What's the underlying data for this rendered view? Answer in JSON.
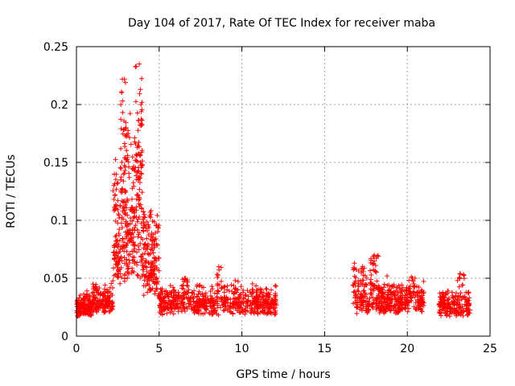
{
  "chart_data": {
    "type": "scatter",
    "title": "Day 104 of 2017, Rate Of TEC Index for receiver maba",
    "xlabel": "GPS time / hours",
    "ylabel": "ROTI / TECUs",
    "xlim": [
      0,
      25
    ],
    "ylim": [
      0,
      0.25
    ],
    "xticks": [
      0,
      5,
      10,
      15,
      20,
      25
    ],
    "yticks": [
      0,
      0.05,
      0.1,
      0.15,
      0.2,
      0.25
    ],
    "xtick_labels": [
      "0",
      "5",
      "10",
      "15",
      "20",
      "25"
    ],
    "ytick_labels": [
      "0",
      "0.05",
      "0.1",
      "0.15",
      "0.2",
      "0.25"
    ],
    "grid": true,
    "marker": "+",
    "color": "#ff0000",
    "series": [
      {
        "name": "ROTI",
        "segments": [
          {
            "t_start": 0.0,
            "t_end": 1.0,
            "base": 0.018,
            "spread": 0.012,
            "n": 160,
            "peaks": [
              [
                0.8,
                0.03
              ]
            ]
          },
          {
            "t_start": 1.0,
            "t_end": 2.2,
            "base": 0.022,
            "spread": 0.014,
            "n": 150,
            "peaks": [
              [
                1.0,
                0.045
              ]
            ]
          },
          {
            "t_start": 2.2,
            "t_end": 3.0,
            "base": 0.06,
            "spread": 0.08,
            "n": 170,
            "peaks": [
              [
                2.9,
                0.222
              ],
              [
                3.0,
                0.18
              ]
            ]
          },
          {
            "t_start": 3.0,
            "t_end": 4.0,
            "base": 0.07,
            "spread": 0.11,
            "n": 220,
            "peaks": [
              [
                3.8,
                0.235
              ],
              [
                3.9,
                0.2
              ],
              [
                3.5,
                0.11
              ]
            ]
          },
          {
            "t_start": 4.0,
            "t_end": 5.0,
            "base": 0.045,
            "spread": 0.06,
            "n": 170,
            "peaks": [
              [
                4.1,
                0.105
              ]
            ]
          },
          {
            "t_start": 5.0,
            "t_end": 12.1,
            "base": 0.02,
            "spread": 0.016,
            "n": 650,
            "peaks": [
              [
                6.6,
                0.05
              ],
              [
                8.6,
                0.06
              ],
              [
                9.6,
                0.048
              ]
            ]
          },
          {
            "t_start": 16.7,
            "t_end": 21.0,
            "base": 0.022,
            "spread": 0.02,
            "n": 480,
            "peaks": [
              [
                16.8,
                0.063
              ],
              [
                17.3,
                0.06
              ],
              [
                18.0,
                0.07
              ],
              [
                20.3,
                0.05
              ]
            ]
          },
          {
            "t_start": 21.9,
            "t_end": 23.8,
            "base": 0.018,
            "spread": 0.014,
            "n": 200,
            "peaks": [
              [
                23.2,
                0.054
              ],
              [
                23.7,
                0.038
              ]
            ]
          }
        ]
      }
    ]
  }
}
